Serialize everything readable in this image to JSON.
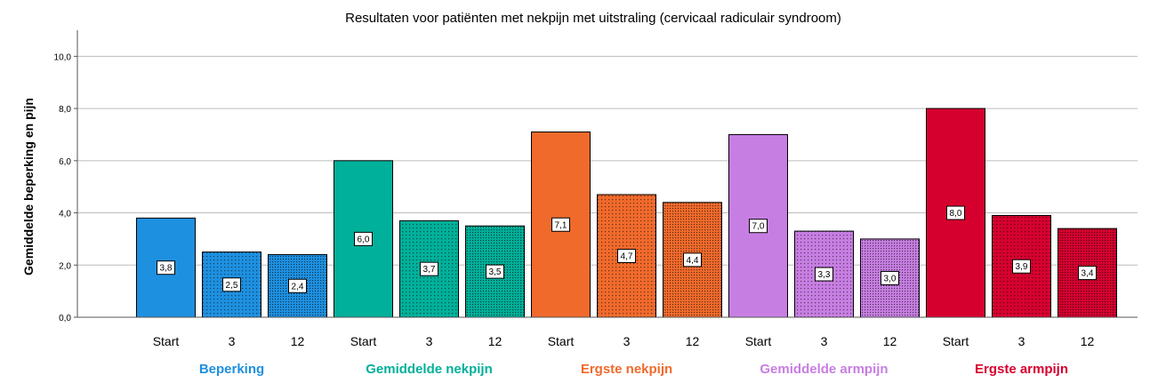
{
  "chart_data": {
    "type": "bar",
    "title": "Resultaten voor patiënten met nekpijn met uitstraling (cervicaal radiculair syndroom)",
    "ylabel": "Gemiddelde beperking en pijn",
    "ylim": [
      0,
      11
    ],
    "yticks": [
      "0,0",
      "2,0",
      "4,0",
      "6,0",
      "8,0",
      "10,0"
    ],
    "grid": true,
    "groups": [
      {
        "name": "Beperking",
        "color": "#1e90e0",
        "categories": [
          "Start",
          "3",
          "12"
        ],
        "values": [
          3.8,
          2.5,
          2.4
        ],
        "labels": [
          "3,8",
          "2,5",
          "2,4"
        ]
      },
      {
        "name": "Gemiddelde nekpijn",
        "color": "#00b09a",
        "categories": [
          "Start",
          "3",
          "12"
        ],
        "values": [
          6.0,
          3.7,
          3.5
        ],
        "labels": [
          "6,0",
          "3,7",
          "3,5"
        ]
      },
      {
        "name": "Ergste nekpijn",
        "color": "#f06a2c",
        "categories": [
          "Start",
          "3",
          "12"
        ],
        "values": [
          7.1,
          4.7,
          4.4
        ],
        "labels": [
          "7,1",
          "4,7",
          "4,4"
        ]
      },
      {
        "name": "Gemiddelde armpijn",
        "color": "#c77ee2",
        "categories": [
          "Start",
          "3",
          "12"
        ],
        "values": [
          7.0,
          3.3,
          3.0
        ],
        "labels": [
          "7,0",
          "3,3",
          "3,0"
        ]
      },
      {
        "name": "Ergste armpijn",
        "color": "#d6002f",
        "categories": [
          "Start",
          "3",
          "12"
        ],
        "values": [
          8.0,
          3.9,
          3.4
        ],
        "labels": [
          "8,0",
          "3,9",
          "3,4"
        ]
      }
    ]
  }
}
